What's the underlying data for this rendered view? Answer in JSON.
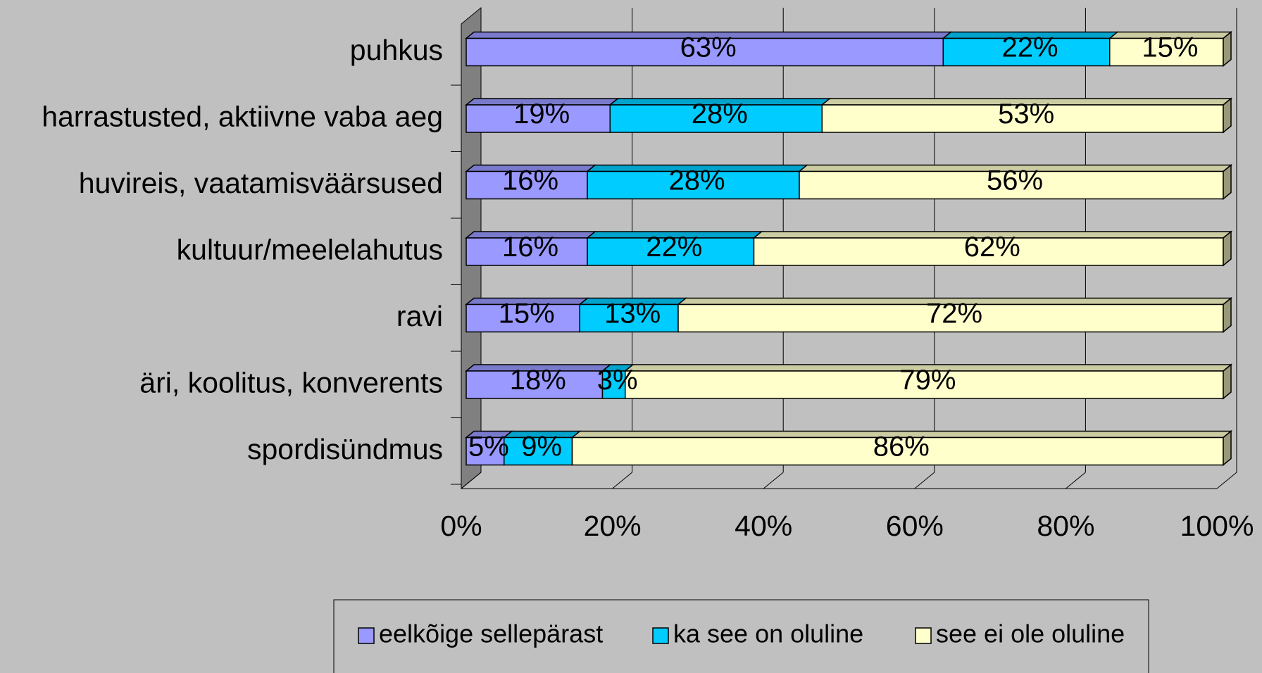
{
  "chart_data": {
    "type": "stacked_bar_horizontal",
    "categories": [
      "puhkus",
      "harrastusted, aktiivne vaba aeg",
      "huvireis, vaatamisväärsused",
      "kultuur/meelelahutus",
      "ravi",
      "äri, koolitus, konverents",
      "spordisündmus"
    ],
    "series": [
      {
        "name": "eelkõige sellepärast",
        "color": "#9999ff",
        "values": [
          63,
          19,
          16,
          16,
          15,
          18,
          5
        ],
        "value_labels": [
          "63%",
          "19%",
          "16%",
          "16%",
          "15%",
          "18%",
          "5%"
        ]
      },
      {
        "name": "ka see on oluline",
        "color": "#00ccff",
        "values": [
          22,
          28,
          28,
          22,
          13,
          3,
          9
        ],
        "value_labels": [
          "22%",
          "28%",
          "28%",
          "22%",
          "13%",
          "3%",
          "9%"
        ]
      },
      {
        "name": "see ei ole oluline",
        "color": "#ffffcc",
        "values": [
          15,
          53,
          56,
          62,
          72,
          79,
          86
        ],
        "value_labels": [
          "15%",
          "53%",
          "56%",
          "62%",
          "72%",
          "79%",
          "86%"
        ]
      }
    ],
    "xlim": [
      0,
      100
    ],
    "xticks": [
      {
        "value": 0,
        "label": "0%"
      },
      {
        "value": 20,
        "label": "20%"
      },
      {
        "value": 40,
        "label": "40%"
      },
      {
        "value": 60,
        "label": "60%"
      },
      {
        "value": 80,
        "label": "80%"
      },
      {
        "value": 100,
        "label": "100%"
      }
    ],
    "grid": true,
    "legend": "bottom"
  }
}
